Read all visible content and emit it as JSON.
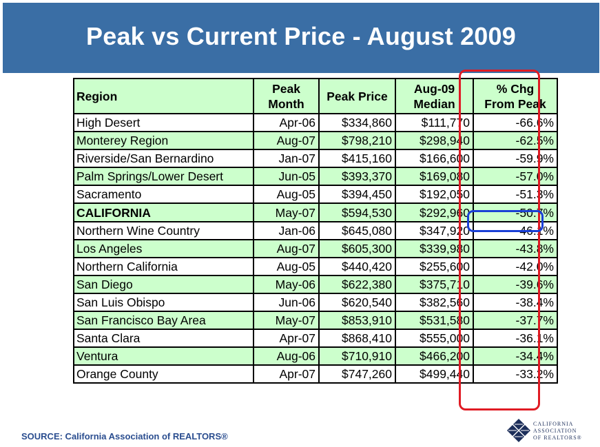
{
  "title": "Peak vs Current Price - August 2009",
  "table": {
    "headers": {
      "region": "Region",
      "peak_month_1": "Peak",
      "peak_month_2": "Month",
      "peak_price": "Peak Price",
      "median_1": "Aug-09",
      "median_2": "Median",
      "chg_1": "% Chg",
      "chg_2": "From Peak"
    },
    "rows": [
      {
        "region": "High Desert",
        "peak_month": "Apr-06",
        "peak_price": "$334,860",
        "median": "$111,770",
        "chg": "-66.6%"
      },
      {
        "region": "Monterey Region",
        "peak_month": "Aug-07",
        "peak_price": "$798,210",
        "median": "$298,940",
        "chg": "-62.5%"
      },
      {
        "region": "Riverside/San Bernardino",
        "peak_month": "Jan-07",
        "peak_price": "$415,160",
        "median": "$166,600",
        "chg": "-59.9%"
      },
      {
        "region": "Palm Springs/Lower Desert",
        "peak_month": "Jun-05",
        "peak_price": "$393,370",
        "median": "$169,080",
        "chg": "-57.0%"
      },
      {
        "region": "Sacramento",
        "peak_month": "Aug-05",
        "peak_price": "$394,450",
        "median": "$192,050",
        "chg": "-51.3%"
      },
      {
        "region": "CALIFORNIA",
        "peak_month": "May-07",
        "peak_price": "$594,530",
        "median": "$292,960",
        "chg": "-50.7%"
      },
      {
        "region": "Northern Wine Country",
        "peak_month": "Jan-06",
        "peak_price": "$645,080",
        "median": "$347,920",
        "chg": "-46.1%"
      },
      {
        "region": "Los Angeles",
        "peak_month": "Aug-07",
        "peak_price": "$605,300",
        "median": "$339,980",
        "chg": "-43.8%"
      },
      {
        "region": "Northern California",
        "peak_month": "Aug-05",
        "peak_price": "$440,420",
        "median": "$255,600",
        "chg": "-42.0%"
      },
      {
        "region": "San Diego",
        "peak_month": "May-06",
        "peak_price": "$622,380",
        "median": "$375,710",
        "chg": "-39.6%"
      },
      {
        "region": "San Luis Obispo",
        "peak_month": "Jun-06",
        "peak_price": "$620,540",
        "median": "$382,560",
        "chg": "-38.4%"
      },
      {
        "region": "San Francisco Bay Area",
        "peak_month": "May-07",
        "peak_price": "$853,910",
        "median": "$531,580",
        "chg": "-37.7%"
      },
      {
        "region": "Santa Clara",
        "peak_month": "Apr-07",
        "peak_price": "$868,410",
        "median": "$555,000",
        "chg": "-36.1%"
      },
      {
        "region": "Ventura",
        "peak_month": "Aug-06",
        "peak_price": "$710,910",
        "median": "$466,200",
        "chg": "-34.4%"
      },
      {
        "region": "Orange County",
        "peak_month": "Apr-07",
        "peak_price": "$747,260",
        "median": "$499,440",
        "chg": "-33.2%"
      }
    ]
  },
  "source": "SOURCE: California Association of REALTORS®",
  "logo": {
    "line1": "CALIFORNIA",
    "line2": "ASSOCIATION",
    "line3": "OF REALTORS®"
  },
  "colors": {
    "title_bar": "#3a6ea5",
    "alt_row": "#ccffcc",
    "highlight_column": "#e01b24",
    "highlight_cell": "#1a3fd6"
  }
}
